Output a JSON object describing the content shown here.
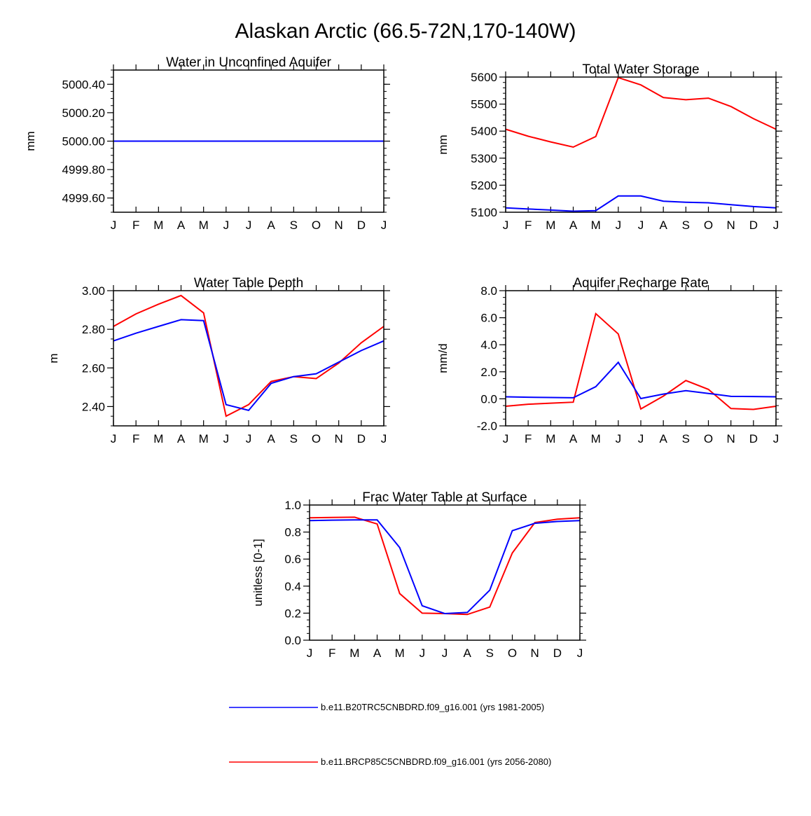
{
  "title": "Alaskan Arctic (66.5-72N,170-140W)",
  "legend": [
    {
      "label": "b.e11.B20TRC5CNBDRD.f09_g16.001 (yrs 1981-2005)",
      "color": "#0000ff"
    },
    {
      "label": "b.e11.BRCP85C5CNBDRD.f09_g16.001 (yrs 2056-2080)",
      "color": "#ff0000"
    }
  ],
  "chart_data": [
    {
      "type": "line",
      "title": "Water in Unconfined Aquifer",
      "ylabel": "mm",
      "xlabel": "",
      "ylim": [
        4999.5,
        5000.5
      ],
      "yticks": [
        4999.6,
        4999.8,
        5000.0,
        5000.2,
        5000.4
      ],
      "ytick_labels": [
        "4999.60",
        "4999.80",
        "5000.00",
        "5000.20",
        "5000.40"
      ],
      "ytick_minor": 0.05,
      "categories": [
        "J",
        "F",
        "M",
        "A",
        "M",
        "J",
        "J",
        "A",
        "S",
        "O",
        "N",
        "D",
        "J"
      ],
      "series": [
        {
          "name": "b.e11.BRCP85C5CNBDRD.f09_g16.001 (yrs 2056-2080)",
          "color": "#ff0000",
          "values": [
            5000,
            5000,
            5000,
            5000,
            5000,
            5000,
            5000,
            5000,
            5000,
            5000,
            5000,
            5000,
            5000
          ]
        },
        {
          "name": "b.e11.B20TRC5CNBDRD.f09_g16.001 (yrs 1981-2005)",
          "color": "#0000ff",
          "values": [
            5000,
            5000,
            5000,
            5000,
            5000,
            5000,
            5000,
            5000,
            5000,
            5000,
            5000,
            5000,
            5000
          ]
        }
      ]
    },
    {
      "type": "line",
      "title": "Total Water Storage",
      "ylabel": "mm",
      "xlabel": "",
      "ylim": [
        5100,
        5600
      ],
      "yticks": [
        5100,
        5200,
        5300,
        5400,
        5500,
        5600
      ],
      "ytick_labels": [
        "5100",
        "5200",
        "5300",
        "5400",
        "5500",
        "5600"
      ],
      "ytick_minor": 20,
      "categories": [
        "J",
        "F",
        "M",
        "A",
        "M",
        "J",
        "J",
        "A",
        "S",
        "O",
        "N",
        "D",
        "J"
      ],
      "series": [
        {
          "name": "b.e11.BRCP85C5CNBDRD.f09_g16.001 (yrs 2056-2080)",
          "color": "#ff0000",
          "values": [
            5407,
            5381,
            5360,
            5341,
            5380,
            5598,
            5571,
            5524,
            5516,
            5522,
            5491,
            5446,
            5407
          ]
        },
        {
          "name": "b.e11.B20TRC5CNBDRD.f09_g16.001 (yrs 1981-2005)",
          "color": "#0000ff",
          "values": [
            5116,
            5112,
            5108,
            5104,
            5106,
            5160,
            5160,
            5141,
            5137,
            5135,
            5128,
            5121,
            5116
          ]
        }
      ]
    },
    {
      "type": "line",
      "title": "Water Table Depth",
      "ylabel": "m",
      "xlabel": "",
      "ylim": [
        2.3,
        3.0
      ],
      "yticks": [
        2.4,
        2.6,
        2.8,
        3.0
      ],
      "ytick_labels": [
        "2.40",
        "2.60",
        "2.80",
        "3.00"
      ],
      "ytick_minor": 0.05,
      "categories": [
        "J",
        "F",
        "M",
        "A",
        "M",
        "J",
        "J",
        "A",
        "S",
        "O",
        "N",
        "D",
        "J"
      ],
      "series": [
        {
          "name": "b.e11.BRCP85C5CNBDRD.f09_g16.001 (yrs 2056-2080)",
          "color": "#ff0000",
          "values": [
            2.815,
            2.88,
            2.93,
            2.975,
            2.885,
            2.35,
            2.41,
            2.53,
            2.555,
            2.545,
            2.625,
            2.73,
            2.815
          ]
        },
        {
          "name": "b.e11.B20TRC5CNBDRD.f09_g16.001 (yrs 1981-2005)",
          "color": "#0000ff",
          "values": [
            2.74,
            2.78,
            2.815,
            2.85,
            2.845,
            2.41,
            2.38,
            2.52,
            2.555,
            2.57,
            2.63,
            2.69,
            2.74
          ]
        }
      ]
    },
    {
      "type": "line",
      "title": "Aquifer Recharge Rate",
      "ylabel": "mm/d",
      "xlabel": "",
      "ylim": [
        -2.0,
        8.0
      ],
      "yticks": [
        -2.0,
        0.0,
        2.0,
        4.0,
        6.0,
        8.0
      ],
      "ytick_labels": [
        "-2.0",
        "0.0",
        "2.0",
        "4.0",
        "6.0",
        "8.0"
      ],
      "ytick_minor": 0.5,
      "categories": [
        "J",
        "F",
        "M",
        "A",
        "M",
        "J",
        "J",
        "A",
        "S",
        "O",
        "N",
        "D",
        "J"
      ],
      "series": [
        {
          "name": "b.e11.BRCP85C5CNBDRD.f09_g16.001 (yrs 2056-2080)",
          "color": "#ff0000",
          "values": [
            -0.55,
            -0.4,
            -0.32,
            -0.25,
            6.3,
            4.8,
            -0.75,
            0.2,
            1.35,
            0.7,
            -0.72,
            -0.78,
            -0.55
          ]
        },
        {
          "name": "b.e11.B20TRC5CNBDRD.f09_g16.001 (yrs 1981-2005)",
          "color": "#0000ff",
          "values": [
            0.15,
            0.12,
            0.1,
            0.08,
            0.9,
            2.7,
            0.02,
            0.35,
            0.6,
            0.4,
            0.18,
            0.17,
            0.15
          ]
        }
      ]
    },
    {
      "type": "line",
      "title": "Frac Water Table at Surface",
      "ylabel": "unitless [0-1]",
      "xlabel": "",
      "ylim": [
        0.0,
        1.0
      ],
      "yticks": [
        0.0,
        0.2,
        0.4,
        0.6,
        0.8,
        1.0
      ],
      "ytick_labels": [
        "0.0",
        "0.2",
        "0.4",
        "0.6",
        "0.8",
        "1.0"
      ],
      "ytick_minor": 0.05,
      "categories": [
        "J",
        "F",
        "M",
        "A",
        "M",
        "J",
        "J",
        "A",
        "S",
        "O",
        "N",
        "D",
        "J"
      ],
      "series": [
        {
          "name": "b.e11.BRCP85C5CNBDRD.f09_g16.001 (yrs 2056-2080)",
          "color": "#ff0000",
          "values": [
            0.905,
            0.908,
            0.91,
            0.86,
            0.345,
            0.2,
            0.197,
            0.19,
            0.245,
            0.645,
            0.87,
            0.895,
            0.905
          ]
        },
        {
          "name": "b.e11.B20TRC5CNBDRD.f09_g16.001 (yrs 1981-2005)",
          "color": "#0000ff",
          "values": [
            0.885,
            0.888,
            0.89,
            0.89,
            0.685,
            0.255,
            0.197,
            0.205,
            0.37,
            0.81,
            0.865,
            0.878,
            0.885
          ]
        }
      ]
    }
  ]
}
